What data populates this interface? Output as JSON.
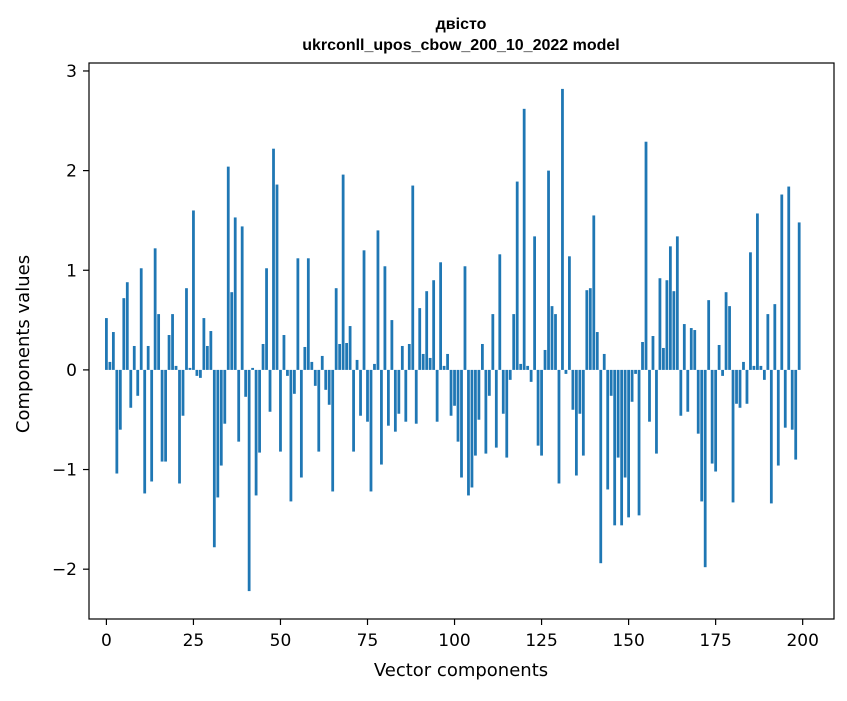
{
  "chart_data": {
    "type": "bar",
    "title": "двісто",
    "subtitle": "ukrconll_upos_cbow_200_10_2022 model",
    "xlabel": "Vector components",
    "ylabel": "Components values",
    "xlim": [
      -5,
      209
    ],
    "ylim": [
      -2.5,
      3.08
    ],
    "xticks": [
      0,
      25,
      50,
      75,
      100,
      125,
      150,
      175,
      200
    ],
    "yticks": [
      -2,
      -1,
      0,
      1,
      2,
      3
    ],
    "ytick_labels": [
      "−2",
      "−1",
      "0",
      "1",
      "2",
      "3"
    ],
    "grid": false,
    "bar_color": "#1f77b4",
    "values": [
      0.52,
      0.08,
      0.38,
      -1.04,
      -0.6,
      0.72,
      0.88,
      -0.38,
      0.24,
      -0.26,
      1.02,
      -1.24,
      0.24,
      -1.12,
      1.22,
      0.56,
      -0.92,
      -0.92,
      0.35,
      0.56,
      0.04,
      -1.14,
      -0.46,
      0.82,
      0.02,
      1.6,
      -0.06,
      -0.08,
      0.52,
      0.24,
      0.39,
      -1.78,
      -1.28,
      -0.96,
      -0.54,
      2.04,
      0.78,
      1.53,
      -0.72,
      1.44,
      -0.27,
      -2.22,
      0.02,
      -1.26,
      -0.83,
      0.26,
      1.02,
      -0.42,
      2.22,
      1.86,
      -0.82,
      0.35,
      -0.06,
      -1.32,
      -0.24,
      1.12,
      -1.08,
      0.23,
      1.12,
      0.08,
      -0.16,
      -0.82,
      0.14,
      -0.2,
      -0.35,
      -1.22,
      0.82,
      0.26,
      1.96,
      0.27,
      0.44,
      -0.82,
      0.1,
      -0.46,
      1.2,
      -0.52,
      -1.22,
      0.06,
      1.4,
      -0.95,
      1.04,
      -0.56,
      0.5,
      -0.62,
      -0.44,
      0.24,
      -0.52,
      0.26,
      1.85,
      -0.54,
      0.62,
      0.16,
      0.79,
      0.12,
      0.9,
      -0.52,
      1.08,
      0.04,
      0.16,
      -0.46,
      -0.36,
      -0.72,
      -1.08,
      1.04,
      -1.26,
      -1.18,
      -0.86,
      -0.5,
      0.26,
      -0.84,
      -0.26,
      0.56,
      -0.78,
      1.16,
      -0.44,
      -0.88,
      -0.1,
      0.56,
      1.89,
      0.06,
      2.62,
      0.04,
      -0.12,
      1.34,
      -0.76,
      -0.86,
      0.2,
      2.0,
      0.64,
      0.56,
      -1.14,
      2.82,
      -0.04,
      1.14,
      -0.4,
      -1.06,
      -0.44,
      -0.86,
      0.8,
      0.82,
      1.55,
      0.38,
      -1.94,
      0.16,
      -1.2,
      -0.26,
      -1.56,
      -0.88,
      -1.56,
      -1.08,
      -1.48,
      -0.32,
      -0.04,
      -1.46,
      0.28,
      2.29,
      -0.52,
      0.34,
      -0.84,
      0.92,
      0.22,
      0.9,
      1.24,
      0.79,
      1.34,
      -0.46,
      0.46,
      -0.42,
      0.42,
      0.4,
      -0.64,
      -1.32,
      -1.98,
      0.7,
      -0.94,
      -1.02,
      0.25,
      -0.06,
      0.78,
      0.64,
      -1.33,
      -0.34,
      -0.38,
      0.08,
      -0.34,
      1.18,
      0.04,
      1.57,
      0.04,
      -0.1,
      0.56,
      -1.34,
      0.66,
      -0.96,
      1.76,
      -0.58,
      1.84,
      -0.6,
      -0.9,
      1.48
    ]
  }
}
